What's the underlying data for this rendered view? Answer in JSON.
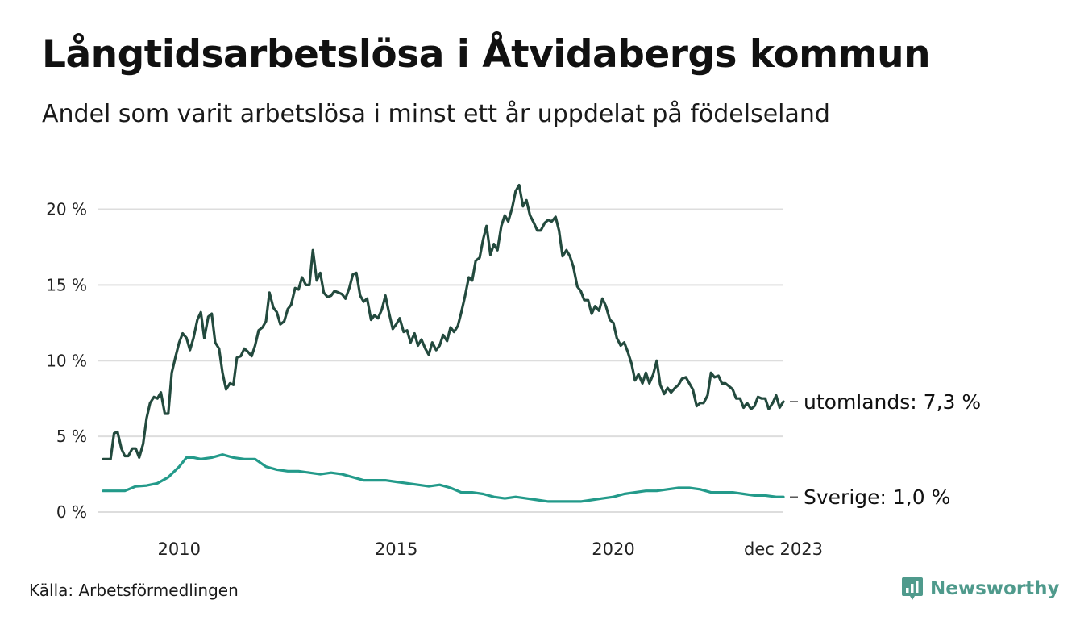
{
  "title": "Långtidsarbetslösa i Åtvidabergs kommun",
  "subtitle": "Andel som varit arbetslösa i minst ett år uppdelat på födelseland",
  "source": "Källa: Arbetsförmedlingen",
  "brand": {
    "name": "Newsworthy",
    "icon": "newsworthy-logo-icon",
    "color": "#4f9a8c"
  },
  "chart_data": {
    "type": "line",
    "x_range": [
      2008.25,
      2023.917
    ],
    "ylim": [
      0,
      22
    ],
    "yticks": [
      0,
      5,
      10,
      15,
      20
    ],
    "ytick_labels": [
      "0 %",
      "5 %",
      "10 %",
      "15 %",
      "20 %"
    ],
    "xticks": [
      2010,
      2015,
      2020,
      2023.917
    ],
    "xtick_labels": [
      "2010",
      "2015",
      "2020",
      "dec 2023"
    ],
    "grid": true,
    "series": [
      {
        "name": "utomlands",
        "end_label": "utomlands: 7,3 %",
        "color": "#234a3e",
        "points": [
          [
            2008.25,
            3.5
          ],
          [
            2008.42,
            3.5
          ],
          [
            2008.5,
            5.2
          ],
          [
            2008.58,
            5.3
          ],
          [
            2008.67,
            4.2
          ],
          [
            2008.75,
            3.7
          ],
          [
            2008.83,
            3.7
          ],
          [
            2008.92,
            4.2
          ],
          [
            2009.0,
            4.2
          ],
          [
            2009.08,
            3.6
          ],
          [
            2009.17,
            4.5
          ],
          [
            2009.25,
            6.2
          ],
          [
            2009.33,
            7.2
          ],
          [
            2009.42,
            7.6
          ],
          [
            2009.5,
            7.5
          ],
          [
            2009.58,
            7.9
          ],
          [
            2009.67,
            6.5
          ],
          [
            2009.75,
            6.5
          ],
          [
            2009.83,
            9.2
          ],
          [
            2009.92,
            10.3
          ],
          [
            2010.0,
            11.2
          ],
          [
            2010.08,
            11.8
          ],
          [
            2010.17,
            11.5
          ],
          [
            2010.25,
            10.7
          ],
          [
            2010.33,
            11.5
          ],
          [
            2010.42,
            12.7
          ],
          [
            2010.5,
            13.2
          ],
          [
            2010.58,
            11.5
          ],
          [
            2010.67,
            12.9
          ],
          [
            2010.75,
            13.1
          ],
          [
            2010.83,
            11.2
          ],
          [
            2010.92,
            10.8
          ],
          [
            2011.0,
            9.2
          ],
          [
            2011.08,
            8.1
          ],
          [
            2011.17,
            8.5
          ],
          [
            2011.25,
            8.4
          ],
          [
            2011.33,
            10.2
          ],
          [
            2011.42,
            10.3
          ],
          [
            2011.5,
            10.8
          ],
          [
            2011.58,
            10.6
          ],
          [
            2011.67,
            10.3
          ],
          [
            2011.75,
            11.0
          ],
          [
            2011.83,
            12.0
          ],
          [
            2011.92,
            12.2
          ],
          [
            2012.0,
            12.6
          ],
          [
            2012.08,
            14.5
          ],
          [
            2012.17,
            13.5
          ],
          [
            2012.25,
            13.2
          ],
          [
            2012.33,
            12.4
          ],
          [
            2012.42,
            12.6
          ],
          [
            2012.5,
            13.4
          ],
          [
            2012.58,
            13.7
          ],
          [
            2012.67,
            14.8
          ],
          [
            2012.75,
            14.7
          ],
          [
            2012.83,
            15.5
          ],
          [
            2012.92,
            15.0
          ],
          [
            2013.0,
            15.0
          ],
          [
            2013.08,
            17.3
          ],
          [
            2013.17,
            15.3
          ],
          [
            2013.25,
            15.8
          ],
          [
            2013.33,
            14.5
          ],
          [
            2013.42,
            14.2
          ],
          [
            2013.5,
            14.3
          ],
          [
            2013.58,
            14.6
          ],
          [
            2013.67,
            14.5
          ],
          [
            2013.75,
            14.4
          ],
          [
            2013.83,
            14.1
          ],
          [
            2013.92,
            14.8
          ],
          [
            2014.0,
            15.7
          ],
          [
            2014.08,
            15.8
          ],
          [
            2014.17,
            14.3
          ],
          [
            2014.25,
            13.9
          ],
          [
            2014.33,
            14.1
          ],
          [
            2014.42,
            12.7
          ],
          [
            2014.5,
            13.0
          ],
          [
            2014.58,
            12.8
          ],
          [
            2014.67,
            13.4
          ],
          [
            2014.75,
            14.3
          ],
          [
            2014.83,
            13.2
          ],
          [
            2014.92,
            12.1
          ],
          [
            2015.0,
            12.4
          ],
          [
            2015.08,
            12.8
          ],
          [
            2015.17,
            11.9
          ],
          [
            2015.25,
            12.0
          ],
          [
            2015.33,
            11.2
          ],
          [
            2015.42,
            11.8
          ],
          [
            2015.5,
            11.0
          ],
          [
            2015.58,
            11.4
          ],
          [
            2015.67,
            10.8
          ],
          [
            2015.75,
            10.4
          ],
          [
            2015.83,
            11.2
          ],
          [
            2015.92,
            10.7
          ],
          [
            2016.0,
            11.0
          ],
          [
            2016.08,
            11.7
          ],
          [
            2016.17,
            11.3
          ],
          [
            2016.25,
            12.2
          ],
          [
            2016.33,
            11.9
          ],
          [
            2016.42,
            12.3
          ],
          [
            2016.5,
            13.2
          ],
          [
            2016.58,
            14.2
          ],
          [
            2016.67,
            15.5
          ],
          [
            2016.75,
            15.3
          ],
          [
            2016.83,
            16.6
          ],
          [
            2016.92,
            16.8
          ],
          [
            2017.0,
            18.0
          ],
          [
            2017.08,
            18.9
          ],
          [
            2017.17,
            17.0
          ],
          [
            2017.25,
            17.7
          ],
          [
            2017.33,
            17.3
          ],
          [
            2017.42,
            18.9
          ],
          [
            2017.5,
            19.6
          ],
          [
            2017.58,
            19.2
          ],
          [
            2017.67,
            20.1
          ],
          [
            2017.75,
            21.2
          ],
          [
            2017.83,
            21.6
          ],
          [
            2017.92,
            20.2
          ],
          [
            2018.0,
            20.6
          ],
          [
            2018.08,
            19.6
          ],
          [
            2018.17,
            19.1
          ],
          [
            2018.25,
            18.6
          ],
          [
            2018.33,
            18.6
          ],
          [
            2018.42,
            19.1
          ],
          [
            2018.5,
            19.3
          ],
          [
            2018.58,
            19.2
          ],
          [
            2018.67,
            19.5
          ],
          [
            2018.75,
            18.6
          ],
          [
            2018.83,
            16.9
          ],
          [
            2018.92,
            17.3
          ],
          [
            2019.0,
            16.9
          ],
          [
            2019.08,
            16.2
          ],
          [
            2019.17,
            14.9
          ],
          [
            2019.25,
            14.6
          ],
          [
            2019.33,
            14.0
          ],
          [
            2019.42,
            14.0
          ],
          [
            2019.5,
            13.1
          ],
          [
            2019.58,
            13.6
          ],
          [
            2019.67,
            13.3
          ],
          [
            2019.75,
            14.1
          ],
          [
            2019.83,
            13.6
          ],
          [
            2019.92,
            12.7
          ],
          [
            2020.0,
            12.5
          ],
          [
            2020.08,
            11.5
          ],
          [
            2020.17,
            11.0
          ],
          [
            2020.25,
            11.2
          ],
          [
            2020.33,
            10.6
          ],
          [
            2020.42,
            9.8
          ],
          [
            2020.5,
            8.7
          ],
          [
            2020.58,
            9.1
          ],
          [
            2020.67,
            8.5
          ],
          [
            2020.75,
            9.2
          ],
          [
            2020.83,
            8.5
          ],
          [
            2020.92,
            9.1
          ],
          [
            2021.0,
            10.0
          ],
          [
            2021.08,
            8.4
          ],
          [
            2021.17,
            7.8
          ],
          [
            2021.25,
            8.2
          ],
          [
            2021.33,
            7.9
          ],
          [
            2021.42,
            8.2
          ],
          [
            2021.5,
            8.4
          ],
          [
            2021.58,
            8.8
          ],
          [
            2021.67,
            8.9
          ],
          [
            2021.75,
            8.5
          ],
          [
            2021.83,
            8.1
          ],
          [
            2021.92,
            7.0
          ],
          [
            2022.0,
            7.2
          ],
          [
            2022.08,
            7.2
          ],
          [
            2022.17,
            7.7
          ],
          [
            2022.25,
            9.2
          ],
          [
            2022.33,
            8.9
          ],
          [
            2022.42,
            9.0
          ],
          [
            2022.5,
            8.5
          ],
          [
            2022.58,
            8.5
          ],
          [
            2022.67,
            8.3
          ],
          [
            2022.75,
            8.1
          ],
          [
            2022.83,
            7.5
          ],
          [
            2022.92,
            7.5
          ],
          [
            2023.0,
            6.9
          ],
          [
            2023.08,
            7.2
          ],
          [
            2023.17,
            6.8
          ],
          [
            2023.25,
            7.0
          ],
          [
            2023.33,
            7.6
          ],
          [
            2023.42,
            7.5
          ],
          [
            2023.5,
            7.5
          ],
          [
            2023.58,
            6.8
          ],
          [
            2023.67,
            7.2
          ],
          [
            2023.75,
            7.7
          ],
          [
            2023.83,
            6.9
          ],
          [
            2023.917,
            7.3
          ]
        ]
      },
      {
        "name": "Sverige",
        "end_label": "Sverige: 1,0 %",
        "color": "#239a8a",
        "points": [
          [
            2008.25,
            1.4
          ],
          [
            2008.5,
            1.4
          ],
          [
            2008.75,
            1.4
          ],
          [
            2009.0,
            1.7
          ],
          [
            2009.25,
            1.75
          ],
          [
            2009.5,
            1.9
          ],
          [
            2009.75,
            2.3
          ],
          [
            2010.0,
            3.0
          ],
          [
            2010.17,
            3.6
          ],
          [
            2010.33,
            3.6
          ],
          [
            2010.5,
            3.5
          ],
          [
            2010.75,
            3.6
          ],
          [
            2011.0,
            3.8
          ],
          [
            2011.25,
            3.6
          ],
          [
            2011.5,
            3.5
          ],
          [
            2011.75,
            3.5
          ],
          [
            2012.0,
            3.0
          ],
          [
            2012.25,
            2.8
          ],
          [
            2012.5,
            2.7
          ],
          [
            2012.75,
            2.7
          ],
          [
            2013.0,
            2.6
          ],
          [
            2013.25,
            2.5
          ],
          [
            2013.5,
            2.6
          ],
          [
            2013.75,
            2.5
          ],
          [
            2014.0,
            2.3
          ],
          [
            2014.25,
            2.1
          ],
          [
            2014.5,
            2.1
          ],
          [
            2014.75,
            2.1
          ],
          [
            2015.0,
            2.0
          ],
          [
            2015.25,
            1.9
          ],
          [
            2015.5,
            1.8
          ],
          [
            2015.75,
            1.7
          ],
          [
            2016.0,
            1.8
          ],
          [
            2016.25,
            1.6
          ],
          [
            2016.5,
            1.3
          ],
          [
            2016.75,
            1.3
          ],
          [
            2017.0,
            1.2
          ],
          [
            2017.25,
            1.0
          ],
          [
            2017.5,
            0.9
          ],
          [
            2017.75,
            1.0
          ],
          [
            2018.0,
            0.9
          ],
          [
            2018.25,
            0.8
          ],
          [
            2018.5,
            0.7
          ],
          [
            2018.75,
            0.7
          ],
          [
            2019.0,
            0.7
          ],
          [
            2019.25,
            0.7
          ],
          [
            2019.5,
            0.8
          ],
          [
            2019.75,
            0.9
          ],
          [
            2020.0,
            1.0
          ],
          [
            2020.25,
            1.2
          ],
          [
            2020.5,
            1.3
          ],
          [
            2020.75,
            1.4
          ],
          [
            2021.0,
            1.4
          ],
          [
            2021.25,
            1.5
          ],
          [
            2021.5,
            1.6
          ],
          [
            2021.75,
            1.6
          ],
          [
            2022.0,
            1.5
          ],
          [
            2022.25,
            1.3
          ],
          [
            2022.5,
            1.3
          ],
          [
            2022.75,
            1.3
          ],
          [
            2023.0,
            1.2
          ],
          [
            2023.25,
            1.1
          ],
          [
            2023.5,
            1.1
          ],
          [
            2023.75,
            1.0
          ],
          [
            2023.917,
            1.0
          ]
        ]
      }
    ]
  }
}
